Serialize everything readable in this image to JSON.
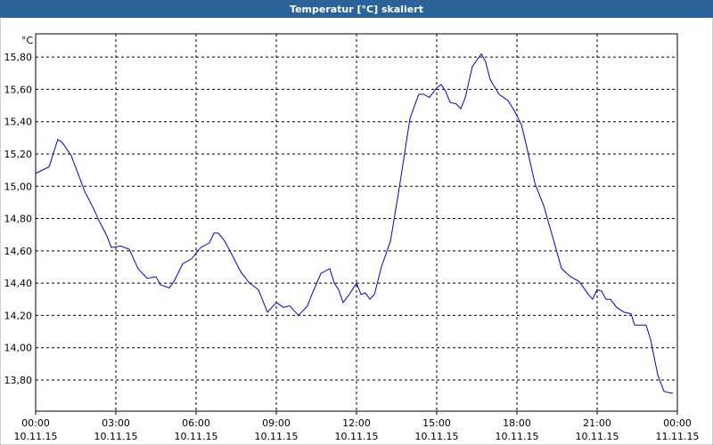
{
  "chart_data": {
    "type": "line",
    "title": "Temperatur [°C] skaliert",
    "y_unit": "°C",
    "x": [
      0,
      0.5,
      0.83,
      1.0,
      1.33,
      1.83,
      2.17,
      2.33,
      2.67,
      2.83,
      3.17,
      3.5,
      3.83,
      4.17,
      4.5,
      4.67,
      5.0,
      5.17,
      5.5,
      5.83,
      6.17,
      6.5,
      6.67,
      6.83,
      7.07,
      7.33,
      7.67,
      8.0,
      8.33,
      8.67,
      9.0,
      9.27,
      9.5,
      9.83,
      10.17,
      10.33,
      10.67,
      11.0,
      11.17,
      11.33,
      11.5,
      11.73,
      12.0,
      12.17,
      12.33,
      12.5,
      12.67,
      12.93,
      13.27,
      13.6,
      14.0,
      14.33,
      14.5,
      14.73,
      15.0,
      15.17,
      15.33,
      15.5,
      15.73,
      15.9,
      16.07,
      16.33,
      16.67,
      16.83,
      17.0,
      17.33,
      17.67,
      17.93,
      18.17,
      18.33,
      18.67,
      19.0,
      19.33,
      19.67,
      20.0,
      20.33,
      20.67,
      20.83,
      21.0,
      21.17,
      21.33,
      21.5,
      21.73,
      22.0,
      22.27,
      22.4,
      22.83,
      23.0,
      23.27,
      23.5,
      23.73,
      23.83
    ],
    "series": [
      {
        "name": "Temperatur",
        "color": "#0000c8",
        "values": [
          15.08,
          15.12,
          15.29,
          15.27,
          15.19,
          14.97,
          14.86,
          14.8,
          14.69,
          14.62,
          14.63,
          14.61,
          14.49,
          14.43,
          14.44,
          14.39,
          14.37,
          14.41,
          14.52,
          14.55,
          14.62,
          14.65,
          14.71,
          14.71,
          14.66,
          14.58,
          14.47,
          14.4,
          14.36,
          14.22,
          14.28,
          14.25,
          14.26,
          14.2,
          14.26,
          14.33,
          14.46,
          14.49,
          14.4,
          14.36,
          14.28,
          14.33,
          14.4,
          14.33,
          14.34,
          14.3,
          14.33,
          14.5,
          14.66,
          14.99,
          15.42,
          15.57,
          15.57,
          15.55,
          15.61,
          15.63,
          15.59,
          15.52,
          15.51,
          15.48,
          15.55,
          15.74,
          15.82,
          15.77,
          15.66,
          15.57,
          15.53,
          15.46,
          15.38,
          15.27,
          15.02,
          14.88,
          14.69,
          14.49,
          14.44,
          14.41,
          14.33,
          14.3,
          14.36,
          14.35,
          14.3,
          14.3,
          14.25,
          14.22,
          14.21,
          14.14,
          14.14,
          14.05,
          13.83,
          13.73,
          13.72,
          13.72
        ]
      }
    ],
    "xlim": [
      0,
      24
    ],
    "xticks": [
      {
        "value": 0,
        "label": "00:00 10.11.15"
      },
      {
        "value": 3,
        "label": "03:00 10.11.15"
      },
      {
        "value": 6,
        "label": "06:00 10.11.15"
      },
      {
        "value": 9,
        "label": "09:00 10.11.15"
      },
      {
        "value": 12,
        "label": "12:00 10.11.15"
      },
      {
        "value": 15,
        "label": "15:00 10.11.15"
      },
      {
        "value": 18,
        "label": "18:00 10.11.15"
      },
      {
        "value": 21,
        "label": "21:00 10.11.15"
      },
      {
        "value": 24,
        "label": "00:00 11.11.15"
      }
    ],
    "ylim": [
      13.607,
      15.944
    ],
    "yticks": [
      {
        "value": 13.8,
        "label": "13,80"
      },
      {
        "value": 14.0,
        "label": "14,00"
      },
      {
        "value": 14.2,
        "label": "14,20"
      },
      {
        "value": 14.4,
        "label": "14,40"
      },
      {
        "value": 14.6,
        "label": "14,60"
      },
      {
        "value": 14.8,
        "label": "14,80"
      },
      {
        "value": 15.0,
        "label": "15,00"
      },
      {
        "value": 15.2,
        "label": "15,20"
      },
      {
        "value": 15.4,
        "label": "15,40"
      },
      {
        "value": 15.6,
        "label": "15,60"
      },
      {
        "value": 15.8,
        "label": "15,80"
      }
    ],
    "grid": true
  }
}
